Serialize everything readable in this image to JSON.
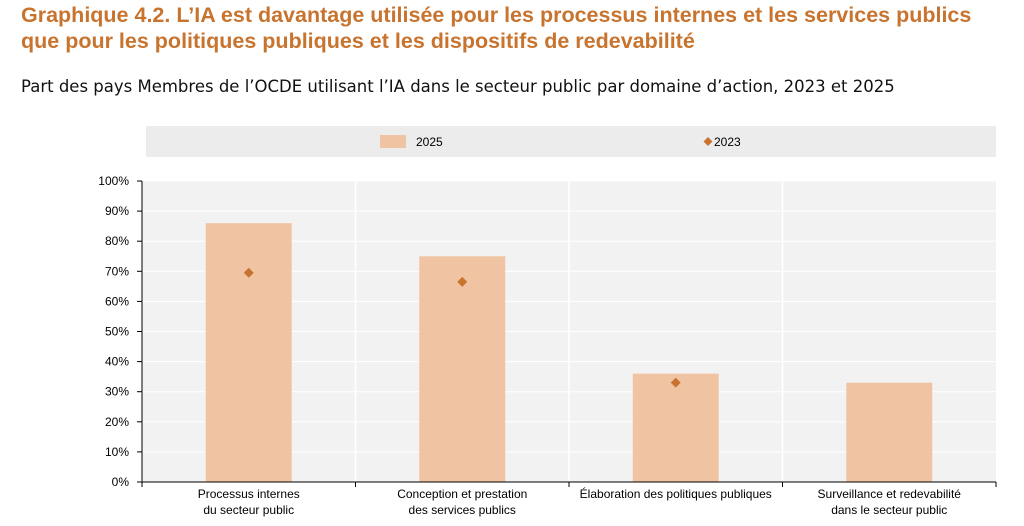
{
  "header": {
    "title": "Graphique 4.2. L’IA est davantage utilisée pour les processus internes et les services publics que pour les politiques publiques et les dispositifs de redevabilité",
    "subtitle": "Part des pays Membres de l’OCDE utilisant l’IA dans le secteur public par domaine d’action, 2023 et 2025"
  },
  "chart_data": {
    "type": "bar",
    "categories": [
      [
        "Processus internes",
        "du secteur public"
      ],
      [
        "Conception et prestation",
        "des services publics"
      ],
      [
        "Élaboration des politiques publiques"
      ],
      [
        "Surveillance et redevabilité",
        "dans le secteur public"
      ]
    ],
    "series": [
      {
        "name": "2025",
        "type": "bar",
        "color": "#f0c4a3",
        "values": [
          86,
          75,
          36,
          33
        ]
      },
      {
        "name": "2023",
        "type": "marker",
        "marker": "diamond",
        "color": "#c8742f",
        "values": [
          69.5,
          66.5,
          33,
          null
        ]
      }
    ],
    "ylim": [
      0,
      100
    ],
    "yticks": [
      "0%",
      "10%",
      "20%",
      "30%",
      "40%",
      "50%",
      "60%",
      "70%",
      "80%",
      "90%",
      "100%"
    ],
    "legend": {
      "position": "top",
      "entries": [
        "2025",
        "2023"
      ]
    },
    "grid": true,
    "colors": {
      "plot_background": "#f2f2f2",
      "legend_background": "#ececec",
      "grid": "#ffffff"
    }
  }
}
